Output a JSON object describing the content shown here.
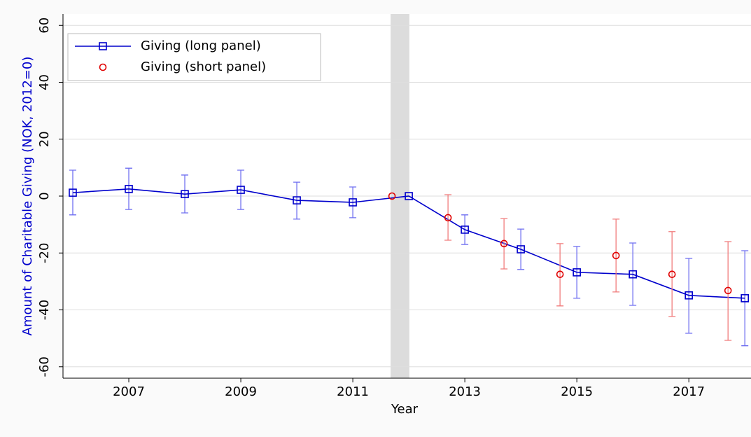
{
  "chart_data": {
    "type": "line",
    "xlabel": "Year",
    "ylabel": "Amount of Charitable Giving (NOK, 2012=0)",
    "xlim": [
      2005.825,
      2018.11
    ],
    "ylim": [
      -64,
      64
    ],
    "xticks": [
      2007,
      2009,
      2011,
      2013,
      2015,
      2017
    ],
    "yticks": [
      -60,
      -40,
      -20,
      0,
      20,
      40,
      60
    ],
    "grid": true,
    "legend": "upper left",
    "shaded_region": [
      2011.675,
      2012.01
    ],
    "series": [
      {
        "name": "Giving (long panel)",
        "color": "#0000cc",
        "error_color": "#6f6ff0",
        "marker": "square",
        "line": true,
        "x": [
          2006,
          2007,
          2008,
          2009,
          2010,
          2011,
          2012,
          2013,
          2014,
          2015,
          2016,
          2017,
          2018
        ],
        "values": [
          1.2,
          2.5,
          0.7,
          2.2,
          -1.5,
          -2.2,
          0,
          -11.8,
          -18.7,
          -26.8,
          -27.5,
          -34.9,
          -35.9
        ],
        "upper": [
          9.1,
          9.8,
          7.4,
          9.1,
          4.9,
          3.2,
          null,
          -6.6,
          -11.6,
          -17.7,
          -16.5,
          -21.9,
          -19.2
        ],
        "lower": [
          -6.6,
          -4.7,
          -5.9,
          -4.7,
          -8.1,
          -7.6,
          null,
          -17,
          -25.8,
          -35.9,
          -38.4,
          -48.2,
          -52.6
        ]
      },
      {
        "name": "Giving (short panel)",
        "color": "#e00000",
        "error_color": "#f07c7c",
        "marker": "circle",
        "line": false,
        "x": [
          2011.7,
          2012.7,
          2013.7,
          2014.7,
          2015.7,
          2016.7,
          2017.7
        ],
        "values": [
          0,
          -7.6,
          -16.7,
          -27.5,
          -20.9,
          -27.5,
          -33.2
        ],
        "upper": [
          null,
          0.5,
          -7.9,
          -16.7,
          -8.1,
          -12.5,
          -16
        ],
        "lower": [
          null,
          -15.5,
          -25.6,
          -38.6,
          -33.7,
          -42.3,
          -50.7
        ]
      }
    ]
  }
}
